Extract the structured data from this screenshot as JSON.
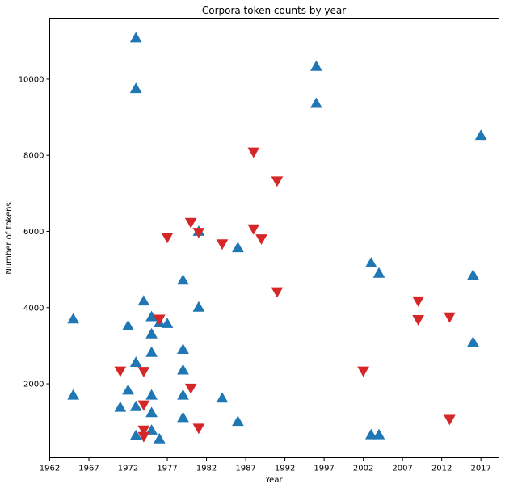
{
  "chart_data": {
    "type": "scatter",
    "title": "Corpora token counts by year",
    "xlabel": "Year",
    "ylabel": "Number of tokens",
    "xlim": [
      1962,
      1969.3
    ],
    "ylim": [
      60,
      11600
    ],
    "xticks": [
      1962,
      1967,
      1972,
      1977,
      1982,
      1987,
      1992,
      1997,
      2002,
      2007,
      2012,
      2017
    ],
    "yticks": [
      2000,
      4000,
      6000,
      8000,
      10000
    ],
    "grid": false,
    "legend": "none",
    "series": [
      {
        "marker": "triangle-up",
        "color": "#1f77b4",
        "points": [
          [
            1965,
            3700
          ],
          [
            1965,
            1700
          ],
          [
            1971,
            1380
          ],
          [
            1972,
            3520
          ],
          [
            1972,
            1830
          ],
          [
            1973,
            11080
          ],
          [
            1973,
            9750
          ],
          [
            1973,
            2560
          ],
          [
            1973,
            1400
          ],
          [
            1973,
            640
          ],
          [
            1974,
            4170
          ],
          [
            1975,
            3760
          ],
          [
            1975,
            3310
          ],
          [
            1975,
            2820
          ],
          [
            1975,
            1700
          ],
          [
            1975,
            1240
          ],
          [
            1975,
            780
          ],
          [
            1976,
            3600
          ],
          [
            1976,
            550
          ],
          [
            1977,
            3580
          ],
          [
            1979,
            4720
          ],
          [
            1979,
            2900
          ],
          [
            1979,
            2360
          ],
          [
            1979,
            1700
          ],
          [
            1979,
            1110
          ],
          [
            1981,
            6000
          ],
          [
            1981,
            4010
          ],
          [
            1984,
            1620
          ],
          [
            1986,
            5570
          ],
          [
            1986,
            1010
          ],
          [
            1996,
            10330
          ],
          [
            1996,
            9360
          ],
          [
            2003,
            5170
          ],
          [
            2003,
            660
          ],
          [
            2004,
            4900
          ],
          [
            2004,
            660
          ],
          [
            2016,
            4850
          ],
          [
            2016,
            3090
          ],
          [
            2017,
            8520
          ]
        ]
      },
      {
        "marker": "triangle-down",
        "color": "#d62728",
        "points": [
          [
            1971,
            2340
          ],
          [
            1974,
            2330
          ],
          [
            1974,
            1450
          ],
          [
            1974,
            790
          ],
          [
            1974,
            620
          ],
          [
            1976,
            3700
          ],
          [
            1977,
            5850
          ],
          [
            1980,
            6240
          ],
          [
            1980,
            1890
          ],
          [
            1981,
            5980
          ],
          [
            1981,
            840
          ],
          [
            1984,
            5680
          ],
          [
            1988,
            8090
          ],
          [
            1988,
            6070
          ],
          [
            1989,
            5810
          ],
          [
            1991,
            7330
          ],
          [
            1991,
            4420
          ],
          [
            2002,
            2340
          ],
          [
            2009,
            4180
          ],
          [
            2009,
            3690
          ],
          [
            2013,
            3760
          ],
          [
            2013,
            1070
          ]
        ]
      }
    ]
  }
}
